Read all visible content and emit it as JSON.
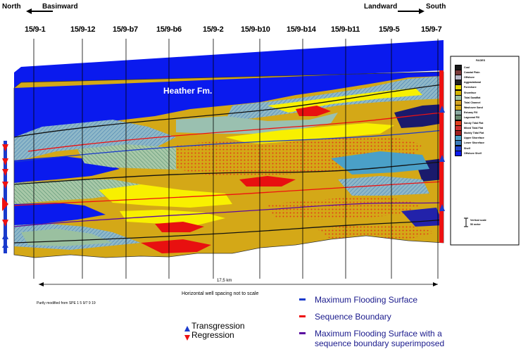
{
  "header": {
    "north": "North",
    "basinward": "Basinward",
    "landward": "Landward",
    "south": "South"
  },
  "wells": [
    "15/9-1",
    "15/9-12",
    "15/9-b7",
    "15/9-b6",
    "15/9-2",
    "15/9-b10",
    "15/9-b14",
    "15/9-b11",
    "15/9-5",
    "15/9-7"
  ],
  "formation_label": "Heather Fm.",
  "scale": {
    "distance": "17,5 km",
    "note": "Horizontal well spacing not to scale"
  },
  "footnote": "Partly modified from SPE 1 5 9/7 9 19",
  "facies_legend": {
    "title": "FACIES",
    "items": [
      {
        "label": "Coal",
        "color": "#1a1a1a"
      },
      {
        "label": "Coastal Plain",
        "color": "#7a3a3a"
      },
      {
        "label": "Offshore",
        "color": "#b8b8c8"
      },
      {
        "label": "Aggradational",
        "color": "#222222"
      },
      {
        "label": "Foreshore",
        "color": "#e8d800"
      },
      {
        "label": "Shoreface",
        "color": "#d4b400"
      },
      {
        "label": "Tidal Sandflat",
        "color": "#9ac0a0"
      },
      {
        "label": "Tidal Channel",
        "color": "#d0a020"
      },
      {
        "label": "Washover Sand",
        "color": "#d4a817"
      },
      {
        "label": "Estuary Fill",
        "color": "#8aa8a0"
      },
      {
        "label": "Lagoonal Fill",
        "color": "#6a8a70"
      },
      {
        "label": "Sandy Tidal Flat",
        "color": "#e04020"
      },
      {
        "label": "Mixed Tidal Flat",
        "color": "#d03030"
      },
      {
        "label": "Muddy Tidal Flat",
        "color": "#a02020"
      },
      {
        "label": "Upper Shoreface",
        "color": "#4aa0c8"
      },
      {
        "label": "Lower Shoreface",
        "color": "#3a7ab8"
      },
      {
        "label": "Shelf",
        "color": "#2244cc"
      },
      {
        "label": "Offshore Shelf",
        "color": "#0a1aee"
      }
    ],
    "vertical_scale": "Vertical scale\n50 meter"
  },
  "legend": {
    "mfs": {
      "label": "Maximum Flooding Surface",
      "color": "#1a3acc"
    },
    "sb": {
      "label": "Sequence Boundary",
      "color": "#ee1111"
    },
    "mfs_sb_line1": "Maximum Flooding Surface with a",
    "mfs_sb_line2": "sequence boundary superimposed",
    "mfs_sb_color": "#5a0aa0",
    "transgression": "Transgression",
    "regression": "Regression"
  }
}
